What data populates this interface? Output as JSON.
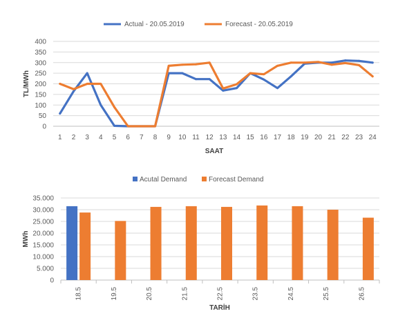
{
  "chart_data": [
    {
      "type": "line",
      "title": "",
      "xlabel": "SAAT",
      "ylabel": "TL/MWh",
      "ylim": [
        0,
        400
      ],
      "y_ticks": [
        "0",
        "50",
        "100",
        "150",
        "200",
        "250",
        "300",
        "350",
        "400"
      ],
      "grid": true,
      "legend_position": "top",
      "categories": [
        "1",
        "2",
        "3",
        "4",
        "5",
        "6",
        "7",
        "8",
        "9",
        "10",
        "11",
        "12",
        "13",
        "14",
        "15",
        "16",
        "17",
        "18",
        "19",
        "20",
        "21",
        "22",
        "23",
        "24"
      ],
      "series": [
        {
          "name": "Actual - 20.05.2019",
          "color": "#4472c4",
          "values": [
            60,
            165,
            250,
            100,
            2,
            0,
            0,
            0,
            250,
            250,
            222,
            222,
            168,
            180,
            250,
            220,
            180,
            235,
            295,
            300,
            300,
            310,
            308,
            300
          ]
        },
        {
          "name": "Forecast - 20.05.2019",
          "color": "#ed7d31",
          "values": [
            200,
            175,
            200,
            200,
            90,
            0,
            0,
            0,
            285,
            290,
            292,
            300,
            178,
            198,
            250,
            245,
            285,
            300,
            300,
            303,
            290,
            298,
            288,
            235
          ]
        }
      ]
    },
    {
      "type": "bar",
      "title": "",
      "xlabel": "TARİH",
      "ylabel": "MWh",
      "ylim": [
        0,
        35000
      ],
      "y_ticks": [
        "0",
        "5.000",
        "10.000",
        "15.000",
        "20.000",
        "25.000",
        "30.000",
        "35.000"
      ],
      "grid": true,
      "legend_position": "top",
      "categories": [
        "18.5",
        "19.5",
        "20.5",
        "21.5",
        "22.5",
        "23.5",
        "24.5",
        "25.5",
        "26.5"
      ],
      "series": [
        {
          "name": "Acutal Demand",
          "color": "#4472c4",
          "values": [
            31500,
            null,
            null,
            null,
            null,
            null,
            null,
            null,
            null
          ]
        },
        {
          "name": "Forecast Demand",
          "color": "#ed7d31",
          "values": [
            28800,
            25200,
            31200,
            31500,
            31200,
            31800,
            31500,
            30000,
            26600
          ]
        }
      ]
    }
  ]
}
